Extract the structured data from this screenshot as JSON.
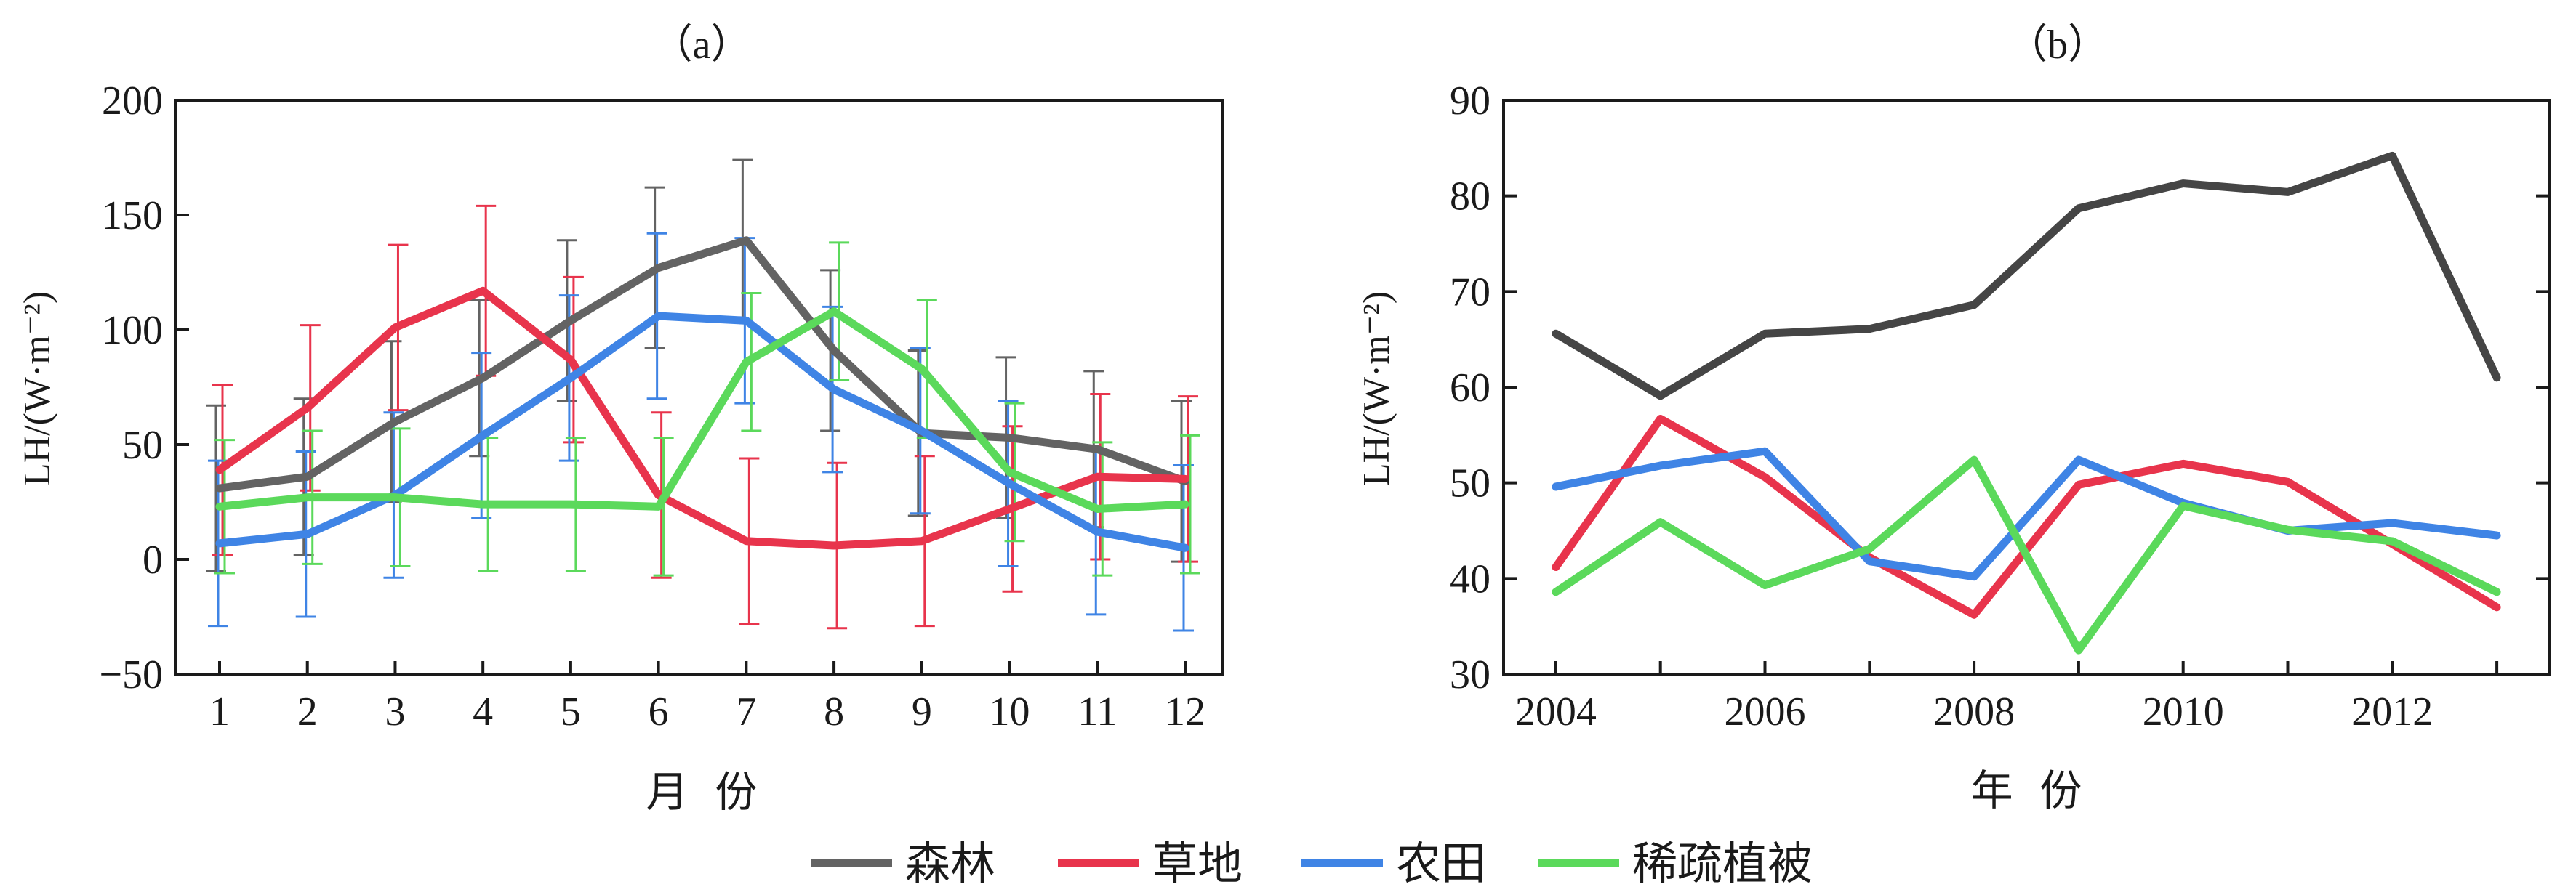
{
  "chart_data": [
    {
      "type": "line",
      "title": "（a）",
      "xlabel": "月  份",
      "ylabel": "LH/(W·m⁻²)",
      "ylim": [
        -50,
        200
      ],
      "xlim": [
        1,
        12
      ],
      "yticks": [
        -50,
        0,
        50,
        100,
        150,
        200
      ],
      "categories": [
        "1",
        "2",
        "3",
        "4",
        "5",
        "6",
        "7",
        "8",
        "9",
        "10",
        "11",
        "12"
      ],
      "series": [
        {
          "name": "森林",
          "color": "#636363",
          "values": [
            31,
            36,
            60,
            79,
            104,
            127,
            139,
            91,
            55,
            53,
            48,
            34
          ],
          "err": [
            36,
            34,
            35,
            34,
            35,
            35,
            35,
            35,
            36,
            35,
            34,
            35
          ]
        },
        {
          "name": "草地",
          "color": "#e8344c",
          "values": [
            39,
            66,
            101,
            117,
            87,
            28,
            8,
            6,
            8,
            22,
            36,
            35
          ],
          "err": [
            37,
            36,
            36,
            37,
            36,
            36,
            36,
            36,
            37,
            36,
            36,
            36
          ]
        },
        {
          "name": "农田",
          "color": "#3f84e5",
          "values": [
            7,
            11,
            28,
            54,
            79,
            106,
            104,
            74,
            56,
            33,
            12,
            5
          ],
          "err": [
            36,
            36,
            36,
            36,
            36,
            36,
            36,
            36,
            36,
            36,
            36,
            36
          ]
        },
        {
          "name": "稀疏植被",
          "color": "#5bd95b",
          "values": [
            23,
            27,
            27,
            24,
            24,
            23,
            86,
            108,
            83,
            38,
            22,
            24
          ],
          "err": [
            29,
            29,
            30,
            29,
            29,
            30,
            30,
            30,
            30,
            30,
            29,
            30
          ]
        }
      ]
    },
    {
      "type": "line",
      "title": "（b）",
      "xlabel": "年  份",
      "ylabel": "LH/(W·m⁻²)",
      "ylim": [
        30,
        90
      ],
      "xlim": [
        2003.5,
        2013.5
      ],
      "yticks": [
        30,
        40,
        50,
        60,
        70,
        80,
        90
      ],
      "xticks": [
        2004,
        2006,
        2008,
        2010,
        2012
      ],
      "x": [
        2004,
        2005,
        2006,
        2007,
        2008,
        2009,
        2010,
        2011,
        2012,
        2013
      ],
      "series": [
        {
          "name": "森林",
          "color": "#454545",
          "values": [
            65.6,
            59.1,
            65.6,
            66.1,
            68.6,
            78.7,
            81.3,
            80.4,
            84.2,
            61.0
          ]
        },
        {
          "name": "草地",
          "color": "#e8344c",
          "values": [
            41.2,
            56.7,
            50.6,
            42.2,
            36.2,
            49.8,
            52.0,
            50.1,
            43.6,
            37.0
          ]
        },
        {
          "name": "农田",
          "color": "#3f84e5",
          "values": [
            49.6,
            51.8,
            53.3,
            41.8,
            40.2,
            52.4,
            47.9,
            45.0,
            45.8,
            44.5
          ]
        },
        {
          "name": "稀疏植被",
          "color": "#5bd95b",
          "values": [
            38.6,
            45.9,
            39.3,
            43.1,
            52.4,
            32.5,
            47.6,
            45.1,
            43.9,
            38.6
          ]
        }
      ]
    }
  ],
  "legend": [
    {
      "label": "森林",
      "color": "#636363"
    },
    {
      "label": "草地",
      "color": "#e8344c"
    },
    {
      "label": "农田",
      "color": "#3f84e5"
    },
    {
      "label": "稀疏植被",
      "color": "#5bd95b"
    }
  ]
}
